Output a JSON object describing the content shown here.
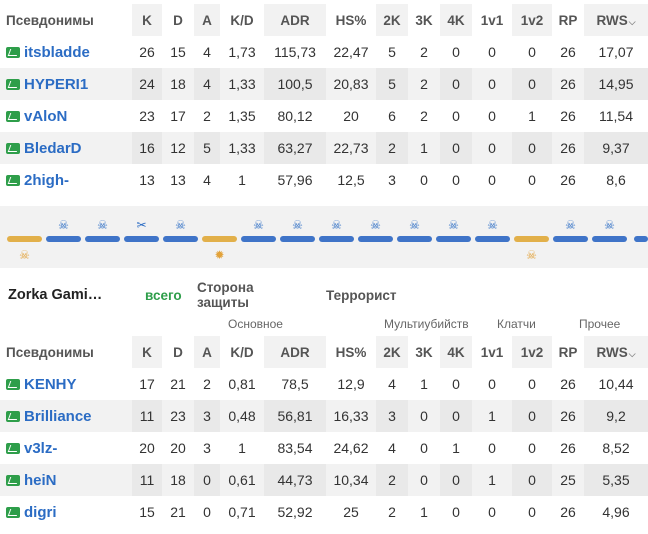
{
  "columns": [
    "Псевдонимы",
    "K",
    "D",
    "A",
    "K/D",
    "ADR",
    "HS%",
    "2K",
    "3K",
    "4K",
    "1v1",
    "1v2",
    "RP",
    "RWS"
  ],
  "team1": {
    "players": [
      {
        "name": "itsbladde",
        "k": "26",
        "d": "15",
        "a": "4",
        "kd": "1,73",
        "adr": "115,73",
        "hs": "22,47",
        "k2": "5",
        "k3": "2",
        "k4": "0",
        "v1": "0",
        "v2": "0",
        "rp": "26",
        "rws": "17,07"
      },
      {
        "name": "HYPERI1",
        "k": "24",
        "d": "18",
        "a": "4",
        "kd": "1,33",
        "adr": "100,5",
        "hs": "20,83",
        "k2": "5",
        "k3": "2",
        "k4": "0",
        "v1": "0",
        "v2": "0",
        "rp": "26",
        "rws": "14,95"
      },
      {
        "name": "vAloN",
        "k": "23",
        "d": "17",
        "a": "2",
        "kd": "1,35",
        "adr": "80,12",
        "hs": "20",
        "k2": "6",
        "k3": "2",
        "k4": "0",
        "v1": "0",
        "v2": "1",
        "rp": "26",
        "rws": "11,54"
      },
      {
        "name": "BledarD",
        "k": "16",
        "d": "12",
        "a": "5",
        "kd": "1,33",
        "adr": "63,27",
        "hs": "22,73",
        "k2": "2",
        "k3": "1",
        "k4": "0",
        "v1": "0",
        "v2": "0",
        "rp": "26",
        "rws": "9,37"
      },
      {
        "name": "2high-",
        "k": "13",
        "d": "13",
        "a": "4",
        "kd": "1",
        "adr": "57,96",
        "hs": "12,5",
        "k2": "3",
        "k3": "0",
        "k4": "0",
        "v1": "0",
        "v2": "0",
        "rp": "26",
        "rws": "8,6"
      }
    ]
  },
  "team2": {
    "name": "Zorka Gami…",
    "tabs": [
      "всего",
      "Сторона защиты",
      "Террорист"
    ],
    "groups": {
      "basic": "Основное",
      "multikills": "Мультиубийств",
      "clutches": "Клатчи",
      "other": "Прочее"
    },
    "players": [
      {
        "name": "KENHY",
        "k": "17",
        "d": "21",
        "a": "2",
        "kd": "0,81",
        "adr": "78,5",
        "hs": "12,9",
        "k2": "4",
        "k3": "1",
        "k4": "0",
        "v1": "0",
        "v2": "0",
        "rp": "26",
        "rws": "10,44"
      },
      {
        "name": "Brilliance",
        "k": "11",
        "d": "23",
        "a": "3",
        "kd": "0,48",
        "adr": "56,81",
        "hs": "16,33",
        "k2": "3",
        "k3": "0",
        "k4": "0",
        "v1": "1",
        "v2": "0",
        "rp": "26",
        "rws": "9,2"
      },
      {
        "name": "v3lz-",
        "k": "20",
        "d": "20",
        "a": "3",
        "kd": "1",
        "adr": "83,54",
        "hs": "24,62",
        "k2": "4",
        "k3": "0",
        "k4": "1",
        "v1": "0",
        "v2": "0",
        "rp": "26",
        "rws": "8,52"
      },
      {
        "name": "heiN",
        "k": "11",
        "d": "18",
        "a": "0",
        "kd": "0,61",
        "adr": "44,73",
        "hs": "10,34",
        "k2": "2",
        "k3": "0",
        "k4": "0",
        "v1": "1",
        "v2": "0",
        "rp": "25",
        "rws": "5,35"
      },
      {
        "name": "digri",
        "k": "15",
        "d": "21",
        "a": "0",
        "kd": "0,71",
        "adr": "52,92",
        "hs": "25",
        "k2": "2",
        "k3": "1",
        "k4": "0",
        "v1": "0",
        "v2": "0",
        "rp": "26",
        "rws": "4,96"
      }
    ]
  },
  "rounds": [
    {
      "winner": "gold",
      "icon": "skull-icon"
    },
    {
      "winner": "blue",
      "icon": "skull-icon"
    },
    {
      "winner": "blue",
      "icon": "skull-icon"
    },
    {
      "winner": "blue",
      "icon": "defuse-icon"
    },
    {
      "winner": "blue",
      "icon": "skull-icon"
    },
    {
      "winner": "gold",
      "icon": "explosion-icon"
    },
    {
      "winner": "blue",
      "icon": "skull-icon"
    },
    {
      "winner": "blue",
      "icon": "skull-icon"
    },
    {
      "winner": "blue",
      "icon": "skull-icon"
    },
    {
      "winner": "blue",
      "icon": "skull-icon"
    },
    {
      "winner": "blue",
      "icon": "skull-icon"
    },
    {
      "winner": "blue",
      "icon": "skull-icon"
    },
    {
      "winner": "blue",
      "icon": "skull-icon"
    },
    {
      "winner": "gold",
      "icon": "skull-icon"
    },
    {
      "winner": "blue",
      "icon": "skull-icon"
    },
    {
      "winner": "blue",
      "icon": "skull-icon"
    }
  ],
  "colors": {
    "ct": "#3f74c8",
    "t": "#e2b04a",
    "accent": "#2e9e4a",
    "link": "#2b6cc4"
  }
}
